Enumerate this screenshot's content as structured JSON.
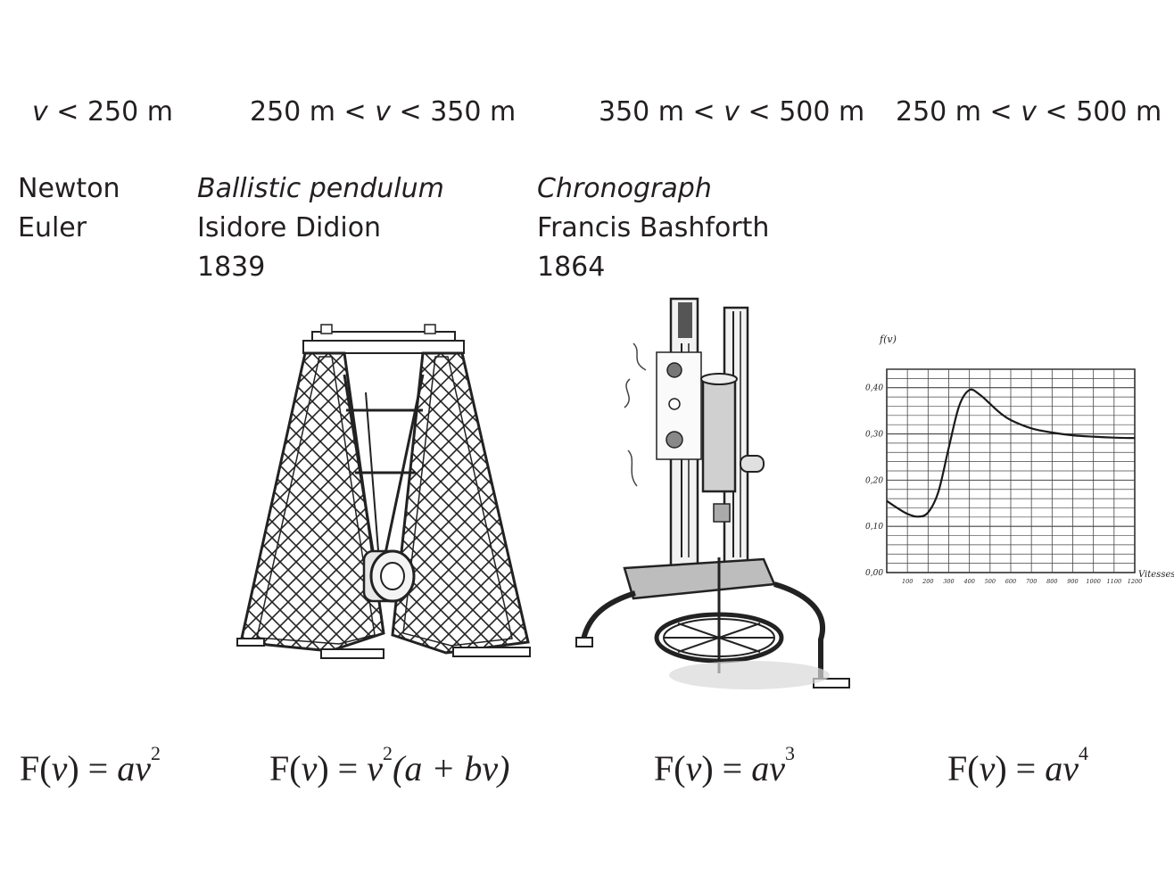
{
  "columns": [
    {
      "range": {
        "pre": "",
        "var": "v",
        "post": " < 250 m"
      },
      "lines": [
        {
          "text": "Newton",
          "italic": false
        },
        {
          "text": "Euler",
          "italic": false
        }
      ],
      "formula": {
        "lhs": "F(",
        "v1": "v",
        "mid": ") = ",
        "rhs_a": "av",
        "exp": "2",
        "tail": ""
      }
    },
    {
      "range": {
        "pre": "250 m < ",
        "var": "v",
        "post": " < 350 m"
      },
      "lines": [
        {
          "text": "Ballistic pendulum",
          "italic": true
        },
        {
          "text": "Isidore Didion",
          "italic": false
        },
        {
          "text": "1839",
          "italic": false
        }
      ],
      "formula": {
        "lhs": "F(",
        "v1": "v",
        "mid": ") = ",
        "rhs_a": "v",
        "exp": "2",
        "tail": "(a + bv)"
      }
    },
    {
      "range": {
        "pre": "350 m < ",
        "var": "v",
        "post": " < 500 m"
      },
      "lines": [
        {
          "text": "Chronograph",
          "italic": true
        },
        {
          "text": "Francis Bashforth",
          "italic": false
        },
        {
          "text": "1864",
          "italic": false
        }
      ],
      "formula": {
        "lhs": "F(",
        "v1": "v",
        "mid": ") = ",
        "rhs_a": "av",
        "exp": "3",
        "tail": ""
      }
    },
    {
      "range": {
        "pre": "250 m < ",
        "var": "v",
        "post": " < 500 m"
      },
      "lines": [],
      "formula": {
        "lhs": "F(",
        "v1": "v",
        "mid": ") = ",
        "rhs_a": "av",
        "exp": "4",
        "tail": ""
      }
    }
  ],
  "chart_data": {
    "type": "line",
    "ylabel": "f(v)",
    "xlabel": "Vitesses",
    "y_ticks": [
      "0,00",
      "0,10",
      "0,20",
      "0,30",
      "0,40"
    ],
    "x_ticks": [
      "100",
      "200",
      "300",
      "400",
      "500",
      "600",
      "700",
      "800",
      "900",
      "1000",
      "1100",
      "1200"
    ],
    "xlim": [
      0,
      1200
    ],
    "ylim": [
      0,
      0.44
    ],
    "grid": true,
    "x": [
      0,
      50,
      100,
      150,
      200,
      250,
      300,
      350,
      400,
      450,
      500,
      550,
      600,
      700,
      800,
      900,
      1000,
      1100,
      1200
    ],
    "y": [
      0.155,
      0.14,
      0.127,
      0.121,
      0.13,
      0.175,
      0.27,
      0.36,
      0.395,
      0.385,
      0.365,
      0.345,
      0.33,
      0.312,
      0.303,
      0.297,
      0.294,
      0.292,
      0.291
    ]
  }
}
